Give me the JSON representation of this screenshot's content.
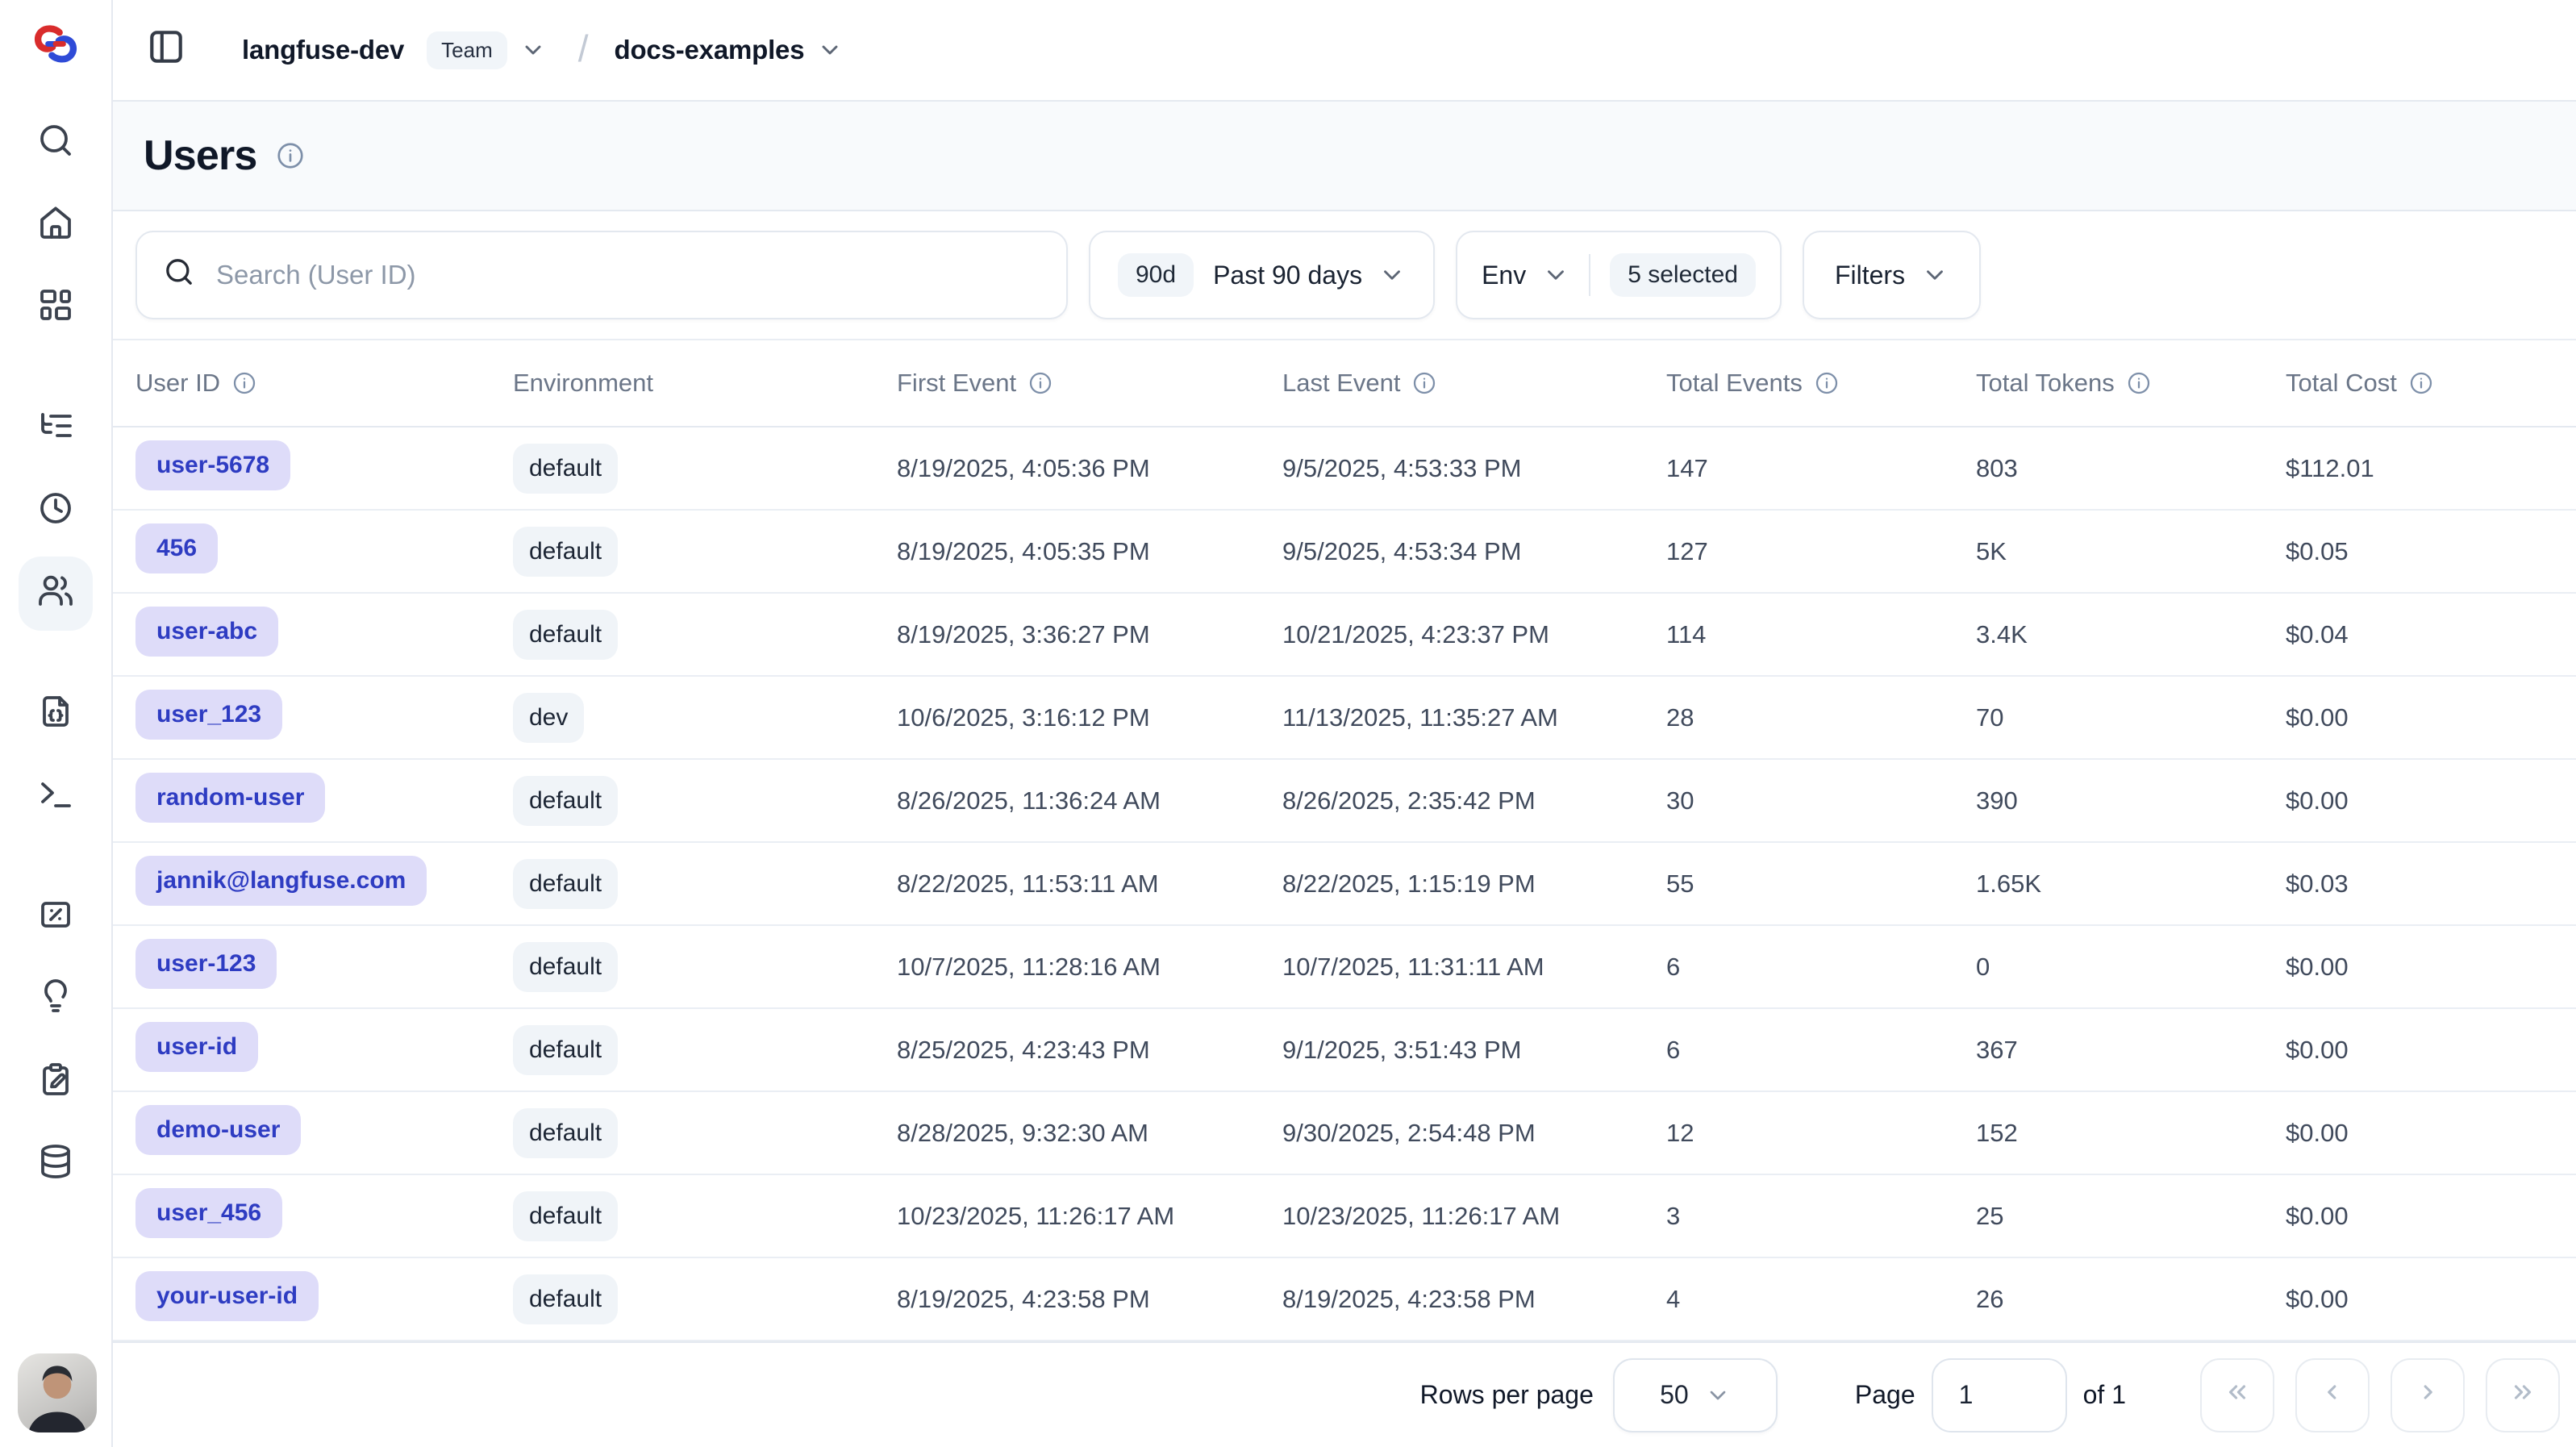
{
  "topbar": {
    "project_name": "langfuse-dev",
    "project_type_badge": "Team",
    "breadcrumb_separator": "/",
    "project_selector": "docs-examples"
  },
  "sidebar": {
    "active_item": "users",
    "icons": [
      "search",
      "home",
      "dashboards",
      "tracing",
      "sessions",
      "users",
      "prompts",
      "playground",
      "evaluation",
      "insights",
      "annotation",
      "datasets",
      "user-avatar"
    ]
  },
  "page": {
    "title": "Users"
  },
  "filters": {
    "search_placeholder": "Search (User ID)",
    "time_range_badge": "90d",
    "time_range_label": "Past 90 days",
    "env_label": "Env",
    "env_selected_badge": "5 selected",
    "filters_label": "Filters"
  },
  "table": {
    "columns": [
      {
        "label": "User ID",
        "info": true
      },
      {
        "label": "Environment",
        "info": false
      },
      {
        "label": "First Event",
        "info": true
      },
      {
        "label": "Last Event",
        "info": true
      },
      {
        "label": "Total Events",
        "info": true
      },
      {
        "label": "Total Tokens",
        "info": true
      },
      {
        "label": "Total Cost",
        "info": true
      }
    ],
    "rows": [
      {
        "user_id": "user-5678",
        "environment": "default",
        "first_event": "8/19/2025, 4:05:36 PM",
        "last_event": "9/5/2025, 4:53:33 PM",
        "total_events": "147",
        "total_tokens": "803",
        "total_cost": "$112.01"
      },
      {
        "user_id": "456",
        "environment": "default",
        "first_event": "8/19/2025, 4:05:35 PM",
        "last_event": "9/5/2025, 4:53:34 PM",
        "total_events": "127",
        "total_tokens": "5K",
        "total_cost": "$0.05"
      },
      {
        "user_id": "user-abc",
        "environment": "default",
        "first_event": "8/19/2025, 3:36:27 PM",
        "last_event": "10/21/2025, 4:23:37 PM",
        "total_events": "114",
        "total_tokens": "3.4K",
        "total_cost": "$0.04"
      },
      {
        "user_id": "user_123",
        "environment": "dev",
        "first_event": "10/6/2025, 3:16:12 PM",
        "last_event": "11/13/2025, 11:35:27 AM",
        "total_events": "28",
        "total_tokens": "70",
        "total_cost": "$0.00"
      },
      {
        "user_id": "random-user",
        "environment": "default",
        "first_event": "8/26/2025, 11:36:24 AM",
        "last_event": "8/26/2025, 2:35:42 PM",
        "total_events": "30",
        "total_tokens": "390",
        "total_cost": "$0.00"
      },
      {
        "user_id": "jannik@langfuse.com",
        "environment": "default",
        "first_event": "8/22/2025, 11:53:11 AM",
        "last_event": "8/22/2025, 1:15:19 PM",
        "total_events": "55",
        "total_tokens": "1.65K",
        "total_cost": "$0.03"
      },
      {
        "user_id": "user-123",
        "environment": "default",
        "first_event": "10/7/2025, 11:28:16 AM",
        "last_event": "10/7/2025, 11:31:11 AM",
        "total_events": "6",
        "total_tokens": "0",
        "total_cost": "$0.00"
      },
      {
        "user_id": "user-id",
        "environment": "default",
        "first_event": "8/25/2025, 4:23:43 PM",
        "last_event": "9/1/2025, 3:51:43 PM",
        "total_events": "6",
        "total_tokens": "367",
        "total_cost": "$0.00"
      },
      {
        "user_id": "demo-user",
        "environment": "default",
        "first_event": "8/28/2025, 9:32:30 AM",
        "last_event": "9/30/2025, 2:54:48 PM",
        "total_events": "12",
        "total_tokens": "152",
        "total_cost": "$0.00"
      },
      {
        "user_id": "user_456",
        "environment": "default",
        "first_event": "10/23/2025, 11:26:17 AM",
        "last_event": "10/23/2025, 11:26:17 AM",
        "total_events": "3",
        "total_tokens": "25",
        "total_cost": "$0.00"
      },
      {
        "user_id": "your-user-id",
        "environment": "default",
        "first_event": "8/19/2025, 4:23:58 PM",
        "last_event": "8/19/2025, 4:23:58 PM",
        "total_events": "4",
        "total_tokens": "26",
        "total_cost": "$0.00"
      }
    ]
  },
  "pagination": {
    "rows_per_page_label": "Rows per page",
    "rows_per_page_value": "50",
    "page_label": "Page",
    "page_value": "1",
    "of_label": "of 1"
  }
}
